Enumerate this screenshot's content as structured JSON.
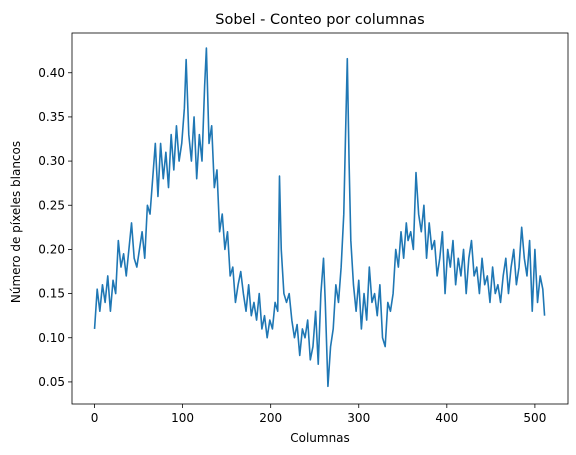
{
  "chart_data": {
    "type": "line",
    "title": "Sobel - Conteo por columnas",
    "xlabel": "Columnas",
    "ylabel": "Número de píxeles blancos",
    "xlim": [
      -25.6,
      537.6
    ],
    "ylim": [
      0.025,
      0.445
    ],
    "xticks": [
      0,
      100,
      200,
      300,
      400,
      500
    ],
    "xtick_labels": [
      "0",
      "100",
      "200",
      "300",
      "400",
      "500"
    ],
    "yticks": [
      0.05,
      0.1,
      0.15,
      0.2,
      0.25,
      0.3,
      0.35,
      0.4
    ],
    "ytick_labels": [
      "0.05",
      "0.10",
      "0.15",
      "0.20",
      "0.25",
      "0.30",
      "0.35",
      "0.40"
    ],
    "grid": false,
    "colors": {
      "line": "#1f77b4",
      "axes": "#000000",
      "background": "#ffffff"
    },
    "series": [
      {
        "name": "",
        "x": [
          0,
          3,
          6,
          9,
          12,
          15,
          18,
          21,
          24,
          27,
          30,
          33,
          36,
          39,
          42,
          45,
          48,
          51,
          54,
          57,
          60,
          63,
          66,
          69,
          72,
          75,
          78,
          81,
          84,
          87,
          90,
          93,
          96,
          99,
          102,
          104,
          107,
          110,
          113,
          116,
          119,
          122,
          125,
          127,
          130,
          133,
          136,
          139,
          142,
          145,
          148,
          151,
          154,
          157,
          160,
          163,
          166,
          169,
          172,
          175,
          178,
          181,
          184,
          187,
          190,
          193,
          196,
          199,
          202,
          205,
          208,
          210,
          212,
          215,
          218,
          221,
          224,
          227,
          230,
          233,
          236,
          239,
          242,
          245,
          248,
          251,
          254,
          257,
          260,
          262,
          265,
          268,
          271,
          274,
          277,
          280,
          283,
          285,
          287,
          289,
          291,
          294,
          297,
          300,
          303,
          306,
          309,
          312,
          315,
          318,
          321,
          324,
          327,
          330,
          333,
          336,
          339,
          342,
          345,
          348,
          351,
          354,
          356,
          359,
          362,
          365,
          368,
          371,
          374,
          377,
          380,
          383,
          386,
          389,
          392,
          395,
          398,
          401,
          404,
          407,
          410,
          413,
          416,
          419,
          422,
          425,
          428,
          431,
          434,
          437,
          440,
          443,
          446,
          449,
          452,
          455,
          458,
          461,
          464,
          467,
          470,
          473,
          476,
          479,
          482,
          485,
          488,
          491,
          494,
          497,
          500,
          503,
          506,
          509,
          511
        ],
        "y": [
          0.11,
          0.155,
          0.13,
          0.16,
          0.14,
          0.17,
          0.13,
          0.165,
          0.15,
          0.21,
          0.18,
          0.195,
          0.17,
          0.2,
          0.23,
          0.19,
          0.18,
          0.2,
          0.22,
          0.19,
          0.25,
          0.24,
          0.28,
          0.32,
          0.26,
          0.32,
          0.28,
          0.31,
          0.27,
          0.33,
          0.29,
          0.34,
          0.3,
          0.32,
          0.36,
          0.415,
          0.33,
          0.3,
          0.35,
          0.28,
          0.33,
          0.3,
          0.385,
          0.428,
          0.32,
          0.34,
          0.27,
          0.29,
          0.22,
          0.24,
          0.2,
          0.22,
          0.17,
          0.18,
          0.14,
          0.16,
          0.175,
          0.15,
          0.13,
          0.16,
          0.125,
          0.14,
          0.12,
          0.15,
          0.11,
          0.125,
          0.1,
          0.12,
          0.11,
          0.14,
          0.13,
          0.283,
          0.2,
          0.15,
          0.14,
          0.15,
          0.12,
          0.1,
          0.115,
          0.08,
          0.11,
          0.1,
          0.12,
          0.075,
          0.09,
          0.13,
          0.07,
          0.15,
          0.19,
          0.14,
          0.045,
          0.09,
          0.11,
          0.16,
          0.14,
          0.18,
          0.24,
          0.33,
          0.416,
          0.3,
          0.21,
          0.16,
          0.13,
          0.165,
          0.11,
          0.15,
          0.12,
          0.18,
          0.14,
          0.15,
          0.125,
          0.16,
          0.1,
          0.09,
          0.14,
          0.13,
          0.15,
          0.2,
          0.18,
          0.22,
          0.19,
          0.23,
          0.21,
          0.22,
          0.2,
          0.287,
          0.24,
          0.22,
          0.25,
          0.19,
          0.23,
          0.2,
          0.21,
          0.17,
          0.19,
          0.22,
          0.15,
          0.2,
          0.18,
          0.21,
          0.16,
          0.19,
          0.17,
          0.2,
          0.15,
          0.19,
          0.21,
          0.17,
          0.18,
          0.15,
          0.19,
          0.16,
          0.17,
          0.14,
          0.18,
          0.15,
          0.16,
          0.14,
          0.17,
          0.19,
          0.15,
          0.18,
          0.2,
          0.16,
          0.18,
          0.225,
          0.19,
          0.17,
          0.21,
          0.13,
          0.2,
          0.14,
          0.17,
          0.155,
          0.125
        ]
      }
    ]
  }
}
